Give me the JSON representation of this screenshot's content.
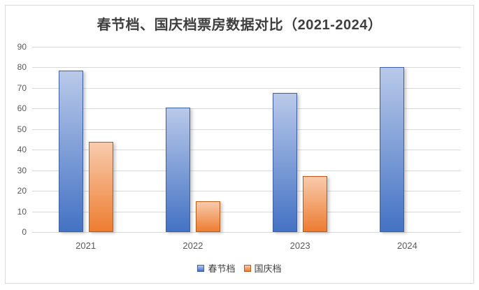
{
  "chart_data": {
    "type": "bar",
    "title": "春节档、国庆档票房数据对比（2021-2024）",
    "categories": [
      "2021",
      "2022",
      "2023",
      "2024"
    ],
    "series": [
      {
        "name": "春节档",
        "values": [
          78.4,
          60.4,
          67.6,
          80.2
        ],
        "color_top": "#b9c9e9",
        "color_bottom": "#4472c4",
        "border": "#3b5ea6"
      },
      {
        "name": "国庆档",
        "values": [
          43.9,
          15.0,
          27.3,
          null
        ],
        "color_top": "#f8cbad",
        "color_bottom": "#ed7d31",
        "border": "#bc5b17"
      }
    ],
    "xlabel": "",
    "ylabel": "",
    "ylim": [
      0,
      90
    ],
    "yticks": [
      0,
      10,
      20,
      30,
      40,
      50,
      60,
      70,
      80,
      90
    ],
    "grid": true,
    "legend_position": "bottom"
  },
  "colors": {
    "gridline": "#d9d9d9",
    "tick_label": "#595959",
    "title": "#3f3f3f",
    "frame_border": "#d9d9d9",
    "background": "#ffffff"
  }
}
